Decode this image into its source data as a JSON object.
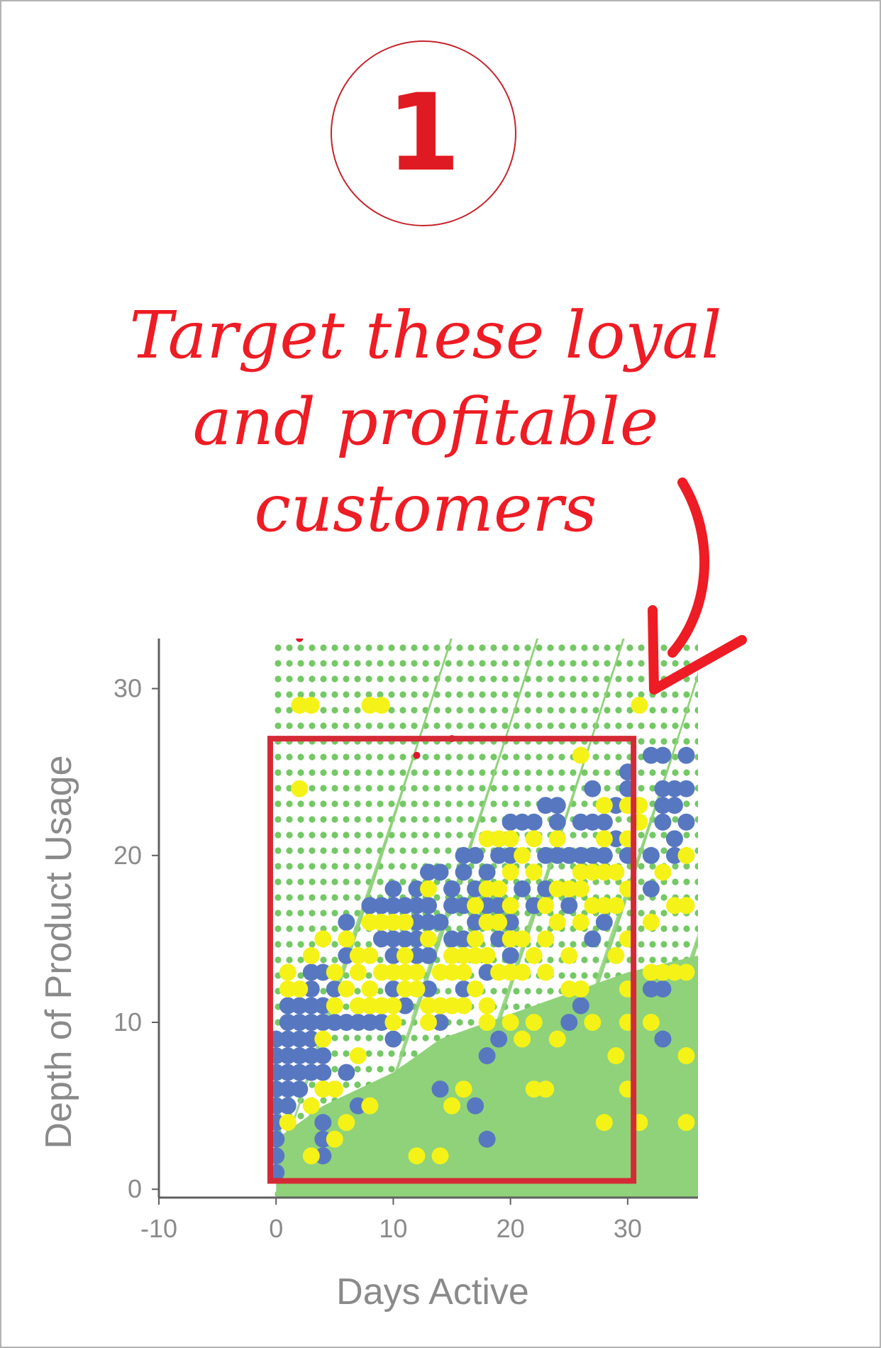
{
  "step": "1",
  "callout_lines": [
    "Target these loyal",
    "and profitable",
    "customers"
  ],
  "colors": {
    "accent_red": "#e01a22",
    "highlight_box": "#d42a35",
    "background_green": "#8fd27a",
    "blue_points": "#5778c0",
    "yellow_points": "#f5f218"
  },
  "chart_data": {
    "type": "scatter",
    "title": "",
    "xlabel": "Days Active",
    "ylabel": "Depth of Product Usage",
    "xlim": [
      -10,
      36
    ],
    "ylim": [
      -0.5,
      33
    ],
    "xticks": [
      -10,
      0,
      10,
      20,
      30
    ],
    "yticks": [
      0,
      10,
      20,
      30
    ],
    "highlight_region": {
      "x": [
        -0.5,
        30.5
      ],
      "y": [
        0.5,
        27
      ]
    },
    "series": [
      {
        "color": "#5778c0",
        "points": [
          [
            0,
            1
          ],
          [
            0,
            2
          ],
          [
            0,
            3
          ],
          [
            0,
            4
          ],
          [
            0,
            5
          ],
          [
            0,
            6
          ],
          [
            0,
            7
          ],
          [
            0,
            8
          ],
          [
            0,
            9
          ],
          [
            1,
            5
          ],
          [
            1,
            6
          ],
          [
            1,
            7
          ],
          [
            1,
            8
          ],
          [
            1,
            9
          ],
          [
            1,
            10
          ],
          [
            1,
            11
          ],
          [
            2,
            6
          ],
          [
            2,
            7
          ],
          [
            2,
            8
          ],
          [
            2,
            9
          ],
          [
            2,
            10
          ],
          [
            2,
            11
          ],
          [
            3,
            7
          ],
          [
            3,
            8
          ],
          [
            3,
            9
          ],
          [
            3,
            10
          ],
          [
            3,
            11
          ],
          [
            3,
            12
          ],
          [
            3,
            13
          ],
          [
            4,
            2
          ],
          [
            4,
            3
          ],
          [
            4,
            4
          ],
          [
            4,
            7
          ],
          [
            4,
            8
          ],
          [
            4,
            10
          ],
          [
            4,
            11
          ],
          [
            4,
            13
          ],
          [
            5,
            10
          ],
          [
            5,
            12
          ],
          [
            6,
            7
          ],
          [
            6,
            10
          ],
          [
            6,
            14
          ],
          [
            6,
            16
          ],
          [
            7,
            5
          ],
          [
            7,
            10
          ],
          [
            8,
            10
          ],
          [
            8,
            17
          ],
          [
            9,
            10
          ],
          [
            9,
            15
          ],
          [
            9,
            17
          ],
          [
            10,
            9
          ],
          [
            10,
            12
          ],
          [
            10,
            14
          ],
          [
            10,
            15
          ],
          [
            10,
            17
          ],
          [
            10,
            18
          ],
          [
            11,
            11
          ],
          [
            11,
            15
          ],
          [
            11,
            17
          ],
          [
            12,
            14
          ],
          [
            12,
            15
          ],
          [
            12,
            16
          ],
          [
            12,
            17
          ],
          [
            12,
            18
          ],
          [
            13,
            12
          ],
          [
            13,
            14
          ],
          [
            13,
            16
          ],
          [
            13,
            17
          ],
          [
            13,
            19
          ],
          [
            14,
            6
          ],
          [
            14,
            10
          ],
          [
            14,
            16
          ],
          [
            14,
            19
          ],
          [
            15,
            15
          ],
          [
            15,
            17
          ],
          [
            15,
            18
          ],
          [
            16,
            12
          ],
          [
            16,
            15
          ],
          [
            16,
            17
          ],
          [
            16,
            19
          ],
          [
            16,
            20
          ],
          [
            17,
            5
          ],
          [
            17,
            16
          ],
          [
            17,
            18
          ],
          [
            17,
            20
          ],
          [
            18,
            3
          ],
          [
            18,
            8
          ],
          [
            18,
            13
          ],
          [
            18,
            17
          ],
          [
            18,
            19
          ],
          [
            19,
            9
          ],
          [
            19,
            15
          ],
          [
            19,
            17
          ],
          [
            19,
            20
          ],
          [
            20,
            14
          ],
          [
            20,
            16
          ],
          [
            20,
            20
          ],
          [
            20,
            22
          ],
          [
            21,
            18
          ],
          [
            21,
            22
          ],
          [
            22,
            17
          ],
          [
            22,
            22
          ],
          [
            23,
            18
          ],
          [
            23,
            20
          ],
          [
            23,
            23
          ],
          [
            24,
            20
          ],
          [
            24,
            22
          ],
          [
            24,
            23
          ],
          [
            25,
            10
          ],
          [
            25,
            17
          ],
          [
            25,
            20
          ],
          [
            26,
            11
          ],
          [
            26,
            20
          ],
          [
            26,
            22
          ],
          [
            27,
            15
          ],
          [
            27,
            20
          ],
          [
            27,
            22
          ],
          [
            27,
            24
          ],
          [
            28,
            16
          ],
          [
            28,
            20
          ],
          [
            28,
            22
          ],
          [
            29,
            21
          ],
          [
            29,
            23
          ],
          [
            30,
            20
          ],
          [
            30,
            24
          ],
          [
            30,
            25
          ],
          [
            32,
            12
          ],
          [
            32,
            18
          ],
          [
            32,
            20
          ],
          [
            32,
            26
          ],
          [
            33,
            9
          ],
          [
            33,
            12
          ],
          [
            33,
            22
          ],
          [
            33,
            23
          ],
          [
            33,
            24
          ],
          [
            33,
            26
          ],
          [
            34,
            20
          ],
          [
            34,
            21
          ],
          [
            34,
            23
          ],
          [
            34,
            24
          ],
          [
            35,
            22
          ],
          [
            35,
            24
          ],
          [
            35,
            26
          ]
        ]
      },
      {
        "color": "#f5f218",
        "points": [
          [
            2,
            24
          ],
          [
            2,
            29
          ],
          [
            3,
            29
          ],
          [
            8,
            29
          ],
          [
            9,
            29
          ],
          [
            31,
            29
          ],
          [
            26,
            26
          ],
          [
            1,
            4
          ],
          [
            1,
            12
          ],
          [
            1,
            13
          ],
          [
            2,
            12
          ],
          [
            3,
            2
          ],
          [
            3,
            5
          ],
          [
            3,
            14
          ],
          [
            4,
            6
          ],
          [
            4,
            9
          ],
          [
            4,
            15
          ],
          [
            5,
            3
          ],
          [
            5,
            6
          ],
          [
            5,
            11
          ],
          [
            5,
            13
          ],
          [
            6,
            4
          ],
          [
            6,
            12
          ],
          [
            6,
            15
          ],
          [
            7,
            8
          ],
          [
            7,
            11
          ],
          [
            7,
            13
          ],
          [
            7,
            14
          ],
          [
            8,
            5
          ],
          [
            8,
            11
          ],
          [
            8,
            12
          ],
          [
            8,
            14
          ],
          [
            8,
            16
          ],
          [
            9,
            11
          ],
          [
            9,
            13
          ],
          [
            9,
            16
          ],
          [
            10,
            10
          ],
          [
            10,
            11
          ],
          [
            10,
            13
          ],
          [
            10,
            16
          ],
          [
            11,
            12
          ],
          [
            11,
            13
          ],
          [
            11,
            14
          ],
          [
            11,
            16
          ],
          [
            12,
            2
          ],
          [
            12,
            12
          ],
          [
            12,
            13
          ],
          [
            13,
            10
          ],
          [
            13,
            11
          ],
          [
            13,
            15
          ],
          [
            13,
            18
          ],
          [
            14,
            2
          ],
          [
            14,
            11
          ],
          [
            14,
            13
          ],
          [
            15,
            5
          ],
          [
            15,
            11
          ],
          [
            15,
            13
          ],
          [
            15,
            14
          ],
          [
            16,
            6
          ],
          [
            16,
            11
          ],
          [
            16,
            13
          ],
          [
            16,
            14
          ],
          [
            17,
            12
          ],
          [
            17,
            14
          ],
          [
            17,
            15
          ],
          [
            17,
            17
          ],
          [
            18,
            10
          ],
          [
            18,
            11
          ],
          [
            18,
            14
          ],
          [
            18,
            16
          ],
          [
            18,
            18
          ],
          [
            18,
            21
          ],
          [
            19,
            13
          ],
          [
            19,
            16
          ],
          [
            19,
            18
          ],
          [
            19,
            21
          ],
          [
            20,
            10
          ],
          [
            20,
            13
          ],
          [
            20,
            15
          ],
          [
            20,
            17
          ],
          [
            20,
            19
          ],
          [
            20,
            21
          ],
          [
            21,
            9
          ],
          [
            21,
            13
          ],
          [
            21,
            15
          ],
          [
            21,
            20
          ],
          [
            22,
            6
          ],
          [
            22,
            10
          ],
          [
            22,
            14
          ],
          [
            22,
            19
          ],
          [
            22,
            21
          ],
          [
            23,
            6
          ],
          [
            23,
            13
          ],
          [
            23,
            15
          ],
          [
            23,
            17
          ],
          [
            24,
            9
          ],
          [
            24,
            16
          ],
          [
            24,
            18
          ],
          [
            24,
            21
          ],
          [
            25,
            12
          ],
          [
            25,
            14
          ],
          [
            25,
            18
          ],
          [
            26,
            12
          ],
          [
            26,
            16
          ],
          [
            26,
            18
          ],
          [
            26,
            19
          ],
          [
            27,
            10
          ],
          [
            27,
            17
          ],
          [
            27,
            19
          ],
          [
            28,
            4
          ],
          [
            28,
            17
          ],
          [
            28,
            19
          ],
          [
            28,
            21
          ],
          [
            28,
            23
          ],
          [
            29,
            8
          ],
          [
            29,
            14
          ],
          [
            29,
            17
          ],
          [
            29,
            19
          ],
          [
            30,
            6
          ],
          [
            30,
            10
          ],
          [
            30,
            12
          ],
          [
            30,
            15
          ],
          [
            30,
            18
          ],
          [
            30,
            21
          ],
          [
            30,
            23
          ],
          [
            31,
            4
          ],
          [
            31,
            22
          ],
          [
            31,
            23
          ],
          [
            32,
            10
          ],
          [
            32,
            13
          ],
          [
            32,
            16
          ],
          [
            33,
            13
          ],
          [
            33,
            19
          ],
          [
            34,
            13
          ],
          [
            34,
            17
          ],
          [
            35,
            4
          ],
          [
            35,
            8
          ],
          [
            35,
            13
          ],
          [
            35,
            17
          ],
          [
            35,
            20
          ]
        ]
      },
      {
        "color": "#e0142a",
        "points": [
          [
            2,
            33
          ],
          [
            12,
            26
          ],
          [
            15,
            27
          ]
        ]
      }
    ]
  }
}
